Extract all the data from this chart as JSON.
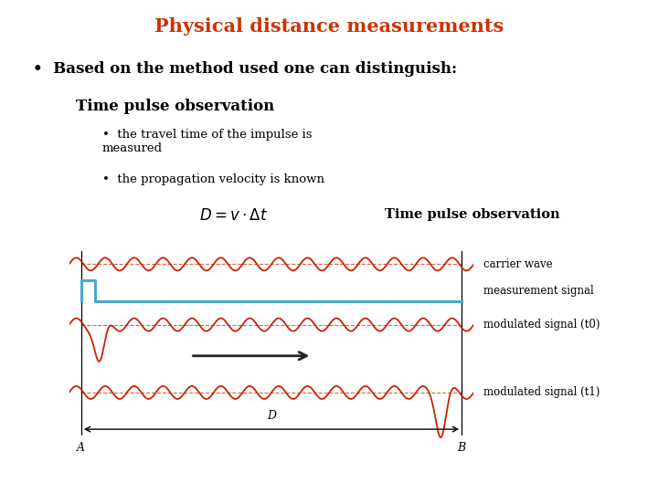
{
  "title": "Physical distance measurements",
  "title_color": "#cc3300",
  "title_fontsize": 15,
  "bullet1": "Based on the method used one can distinguish:",
  "subhead": "Time pulse observation",
  "bullet2a": "the travel time of the impulse is\nmeasured",
  "bullet2b": "the propagation velocity is known",
  "diagram_label": "Time pulse observation",
  "label_carrier": "carrier wave",
  "label_measurement": "measurement signal",
  "label_modulated0": "modulated signal (t0)",
  "label_modulated1": "modulated signal (t1)",
  "label_A": "A",
  "label_B": "B",
  "label_D": "D",
  "bg_color": "#ffffff",
  "text_color": "#000000",
  "wave_color": "#cc2200",
  "measurement_color": "#4aa8cc",
  "arrow_color": "#222222",
  "wave_freq": 1.4,
  "wave_amp": 0.35
}
